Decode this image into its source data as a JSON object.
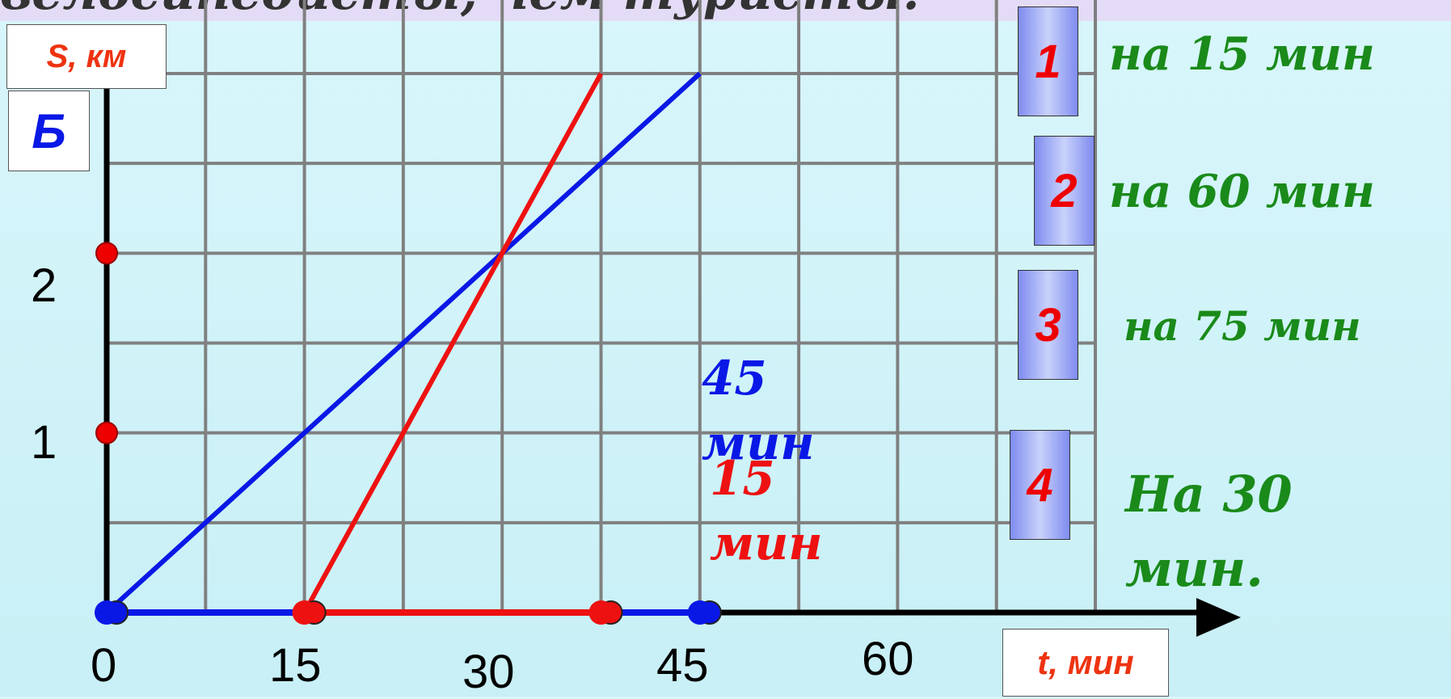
{
  "title": "велосипедисты, чем туристы.",
  "colors": {
    "cyclist": "#ee1111",
    "tourist": "#0a18e6",
    "answer": "#1a8a1a",
    "grid": "#808080"
  },
  "chart_data": {
    "type": "line",
    "ylabel": "S, км",
    "xlabel": "t, мин",
    "x_ticks": [
      "0",
      "15",
      "30",
      "45",
      "60"
    ],
    "y_ticks": [
      "1",
      "2"
    ],
    "point_label": "Б",
    "xlim": [
      0,
      75
    ],
    "ylim": [
      0,
      3
    ],
    "series": [
      {
        "points": [
          [
            0,
            0
          ],
          [
            30,
            2
          ],
          [
            45,
            3
          ]
        ]
      },
      {
        "points": [
          [
            15,
            0
          ],
          [
            30,
            2
          ],
          [
            37.5,
            3
          ]
        ]
      }
    ],
    "annotations": {
      "tourist_time": [
        "45",
        "мин"
      ],
      "cyclist_time": [
        "15",
        "мин"
      ]
    }
  },
  "answers": [
    {
      "number": "1",
      "text": "на 15 мин"
    },
    {
      "number": "2",
      "text": "на 60 мин"
    },
    {
      "number": "3",
      "text": "на 75 мин"
    },
    {
      "number": "4",
      "text": "На 30 мин."
    }
  ]
}
